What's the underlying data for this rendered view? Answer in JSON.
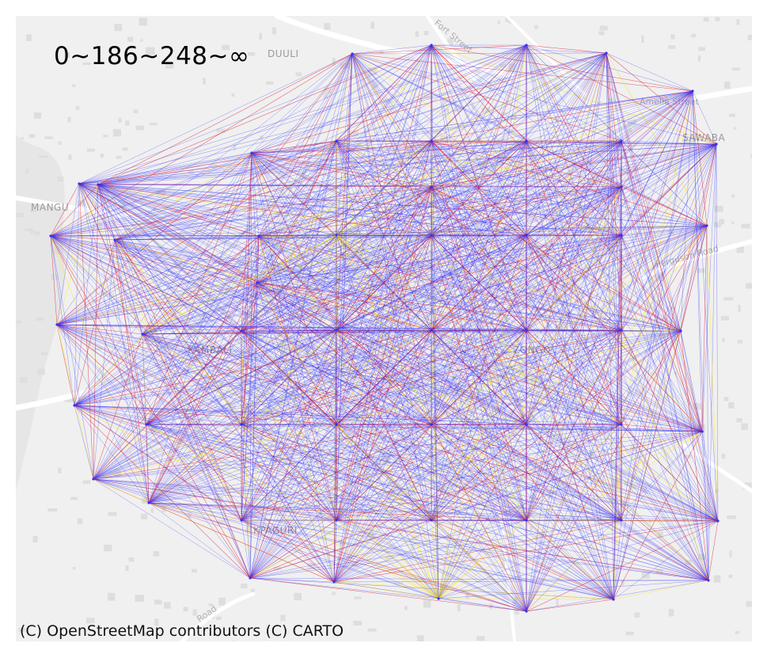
{
  "legend": {
    "title": "0~186~248~∞",
    "break_values": [
      "0",
      "186",
      "248",
      "∞"
    ],
    "class_colors": [
      "#2b2bff",
      "#e0182f",
      "#ffe400"
    ]
  },
  "attribution": "(C) OpenStreetMap contributors (C) CARTO",
  "basemap": {
    "background": "#f0f0f0",
    "road_color": "#ffffff",
    "building_color": "#dcdcdc",
    "place_labels": [
      "DUULI",
      "SAWABA",
      "MANGU",
      "KAMBALI",
      "ZONGO",
      "KPAGURI"
    ],
    "road_labels": [
      "Fort Street",
      "Amelia Street",
      "Ferguson Road",
      "Road"
    ]
  },
  "network": {
    "node_color": "#3232ff",
    "nodes": [
      {
        "id": "n01"
      },
      {
        "id": "n02"
      },
      {
        "id": "n03"
      },
      {
        "id": "n04"
      },
      {
        "id": "n05"
      },
      {
        "id": "n06"
      },
      {
        "id": "n07"
      },
      {
        "id": "n08"
      },
      {
        "id": "n09"
      },
      {
        "id": "n10"
      },
      {
        "id": "n11"
      },
      {
        "id": "n12"
      },
      {
        "id": "n13"
      },
      {
        "id": "n14"
      },
      {
        "id": "n15"
      },
      {
        "id": "n16"
      },
      {
        "id": "n17"
      },
      {
        "id": "n18"
      },
      {
        "id": "n19"
      },
      {
        "id": "n20"
      },
      {
        "id": "n21"
      },
      {
        "id": "n22"
      },
      {
        "id": "n23"
      },
      {
        "id": "n24"
      },
      {
        "id": "n25"
      },
      {
        "id": "n26"
      },
      {
        "id": "n27"
      },
      {
        "id": "n28"
      },
      {
        "id": "n29"
      },
      {
        "id": "n30"
      },
      {
        "id": "n31"
      },
      {
        "id": "n32"
      },
      {
        "id": "n33"
      },
      {
        "id": "n34"
      },
      {
        "id": "n35"
      },
      {
        "id": "n36"
      },
      {
        "id": "n37"
      },
      {
        "id": "n38"
      },
      {
        "id": "n39"
      },
      {
        "id": "n40"
      },
      {
        "id": "n41"
      },
      {
        "id": "n42"
      },
      {
        "id": "n43"
      },
      {
        "id": "n44"
      },
      {
        "id": "n45"
      },
      {
        "id": "n46"
      },
      {
        "id": "n47"
      },
      {
        "id": "n48"
      },
      {
        "id": "n49"
      },
      {
        "id": "n50"
      },
      {
        "id": "n51"
      },
      {
        "id": "n52"
      },
      {
        "id": "n53"
      },
      {
        "id": "n54"
      }
    ]
  }
}
